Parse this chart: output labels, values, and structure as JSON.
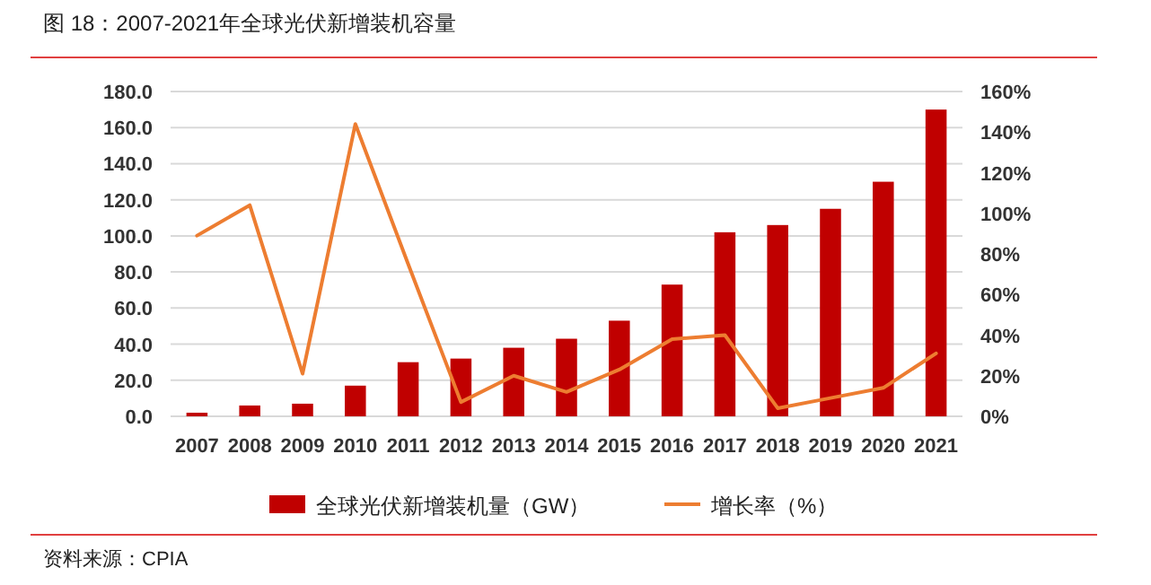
{
  "chart_data": {
    "type": "bar",
    "title": "图 18：2007-2021年全球光伏新增装机容量",
    "categories": [
      "2007",
      "2008",
      "2009",
      "2010",
      "2011",
      "2012",
      "2013",
      "2014",
      "2015",
      "2016",
      "2017",
      "2018",
      "2019",
      "2020",
      "2021"
    ],
    "series": [
      {
        "name": "全球光伏新增装机量（GW）",
        "color": "#c00000",
        "values": [
          2,
          6,
          7,
          17,
          30,
          32,
          38,
          43,
          53,
          73,
          102,
          106,
          115,
          130,
          170
        ]
      },
      {
        "name": "增长率（%）",
        "type": "line",
        "axis": "y2",
        "color": "#ed7d31",
        "values": [
          89,
          104,
          21,
          144,
          75,
          7,
          20,
          12,
          23,
          38,
          40,
          4,
          9,
          14,
          31
        ]
      }
    ],
    "ylim": [
      0,
      180
    ],
    "yticks": [
      {
        "value": 0,
        "label": "0.0"
      },
      {
        "value": 20,
        "label": "20.0"
      },
      {
        "value": 40,
        "label": "40.0"
      },
      {
        "value": 60,
        "label": "60.0"
      },
      {
        "value": 80,
        "label": "80.0"
      },
      {
        "value": 100,
        "label": "100.0"
      },
      {
        "value": 120,
        "label": "120.0"
      },
      {
        "value": 140,
        "label": "140.0"
      },
      {
        "value": 160,
        "label": "160.0"
      },
      {
        "value": 180,
        "label": "180.0"
      }
    ],
    "y2lim": [
      0,
      160
    ],
    "y2ticks": [
      {
        "value": 0,
        "label": "0%"
      },
      {
        "value": 20,
        "label": "20%"
      },
      {
        "value": 40,
        "label": "40%"
      },
      {
        "value": 60,
        "label": "60%"
      },
      {
        "value": 80,
        "label": "80%"
      },
      {
        "value": 100,
        "label": "100%"
      },
      {
        "value": 120,
        "label": "120%"
      },
      {
        "value": 140,
        "label": "140%"
      },
      {
        "value": 160,
        "label": "160%"
      }
    ],
    "grid": "y",
    "legend": "bottom",
    "marker": "none",
    "line_style": "solid",
    "annotations": [
      "资料来源：CPIA"
    ]
  }
}
